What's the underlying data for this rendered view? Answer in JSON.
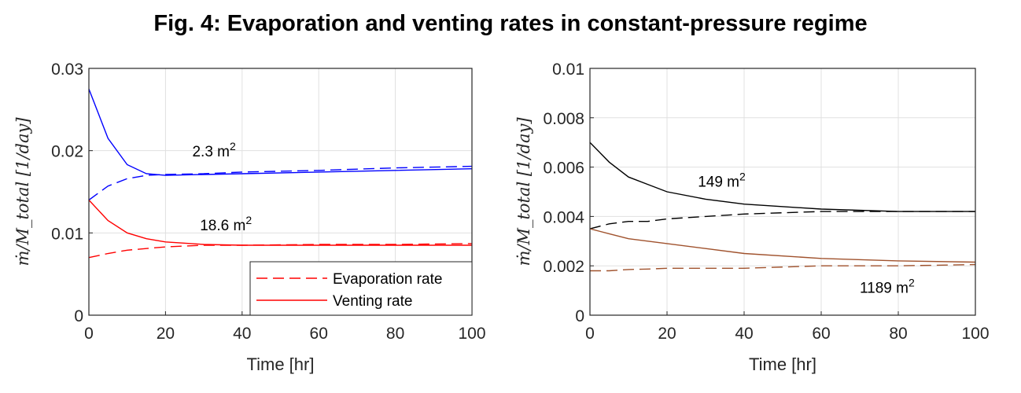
{
  "title": "Fig. 4: Evaporation and venting rates in constant-pressure regime",
  "chart_data": [
    {
      "type": "line",
      "xlabel": "Time [hr]",
      "ylabel": "ṁ/M_total  [1/day]",
      "xlim": [
        0,
        100
      ],
      "ylim": [
        0,
        0.03
      ],
      "xticks": [
        "0",
        "20",
        "40",
        "60",
        "80",
        "100"
      ],
      "yticks": [
        "0",
        "0.01",
        "0.02",
        "0.03"
      ],
      "grid": true,
      "legend": {
        "placement": "bottom-right",
        "entries": [
          "Evaporation rate",
          "Venting rate"
        ]
      },
      "annotations": [
        {
          "text": "2.3 m",
          "sup": "2",
          "x": 27,
          "y": 0.0193
        },
        {
          "text": "18.6 m",
          "sup": "2",
          "x": 29,
          "y": 0.0103
        }
      ],
      "x": [
        0,
        5,
        10,
        15,
        20,
        30,
        40,
        60,
        80,
        100
      ],
      "series": [
        {
          "name": "Venting rate 2.3 m2",
          "color": "#0000ff",
          "dash": false,
          "values": [
            0.0275,
            0.0215,
            0.0183,
            0.0172,
            0.017,
            0.0171,
            0.0172,
            0.0174,
            0.0176,
            0.0178
          ]
        },
        {
          "name": "Evaporation rate 2.3 m2",
          "color": "#0000ff",
          "dash": true,
          "values": [
            0.014,
            0.0157,
            0.0166,
            0.017,
            0.0171,
            0.0172,
            0.0174,
            0.0176,
            0.0179,
            0.0181
          ]
        },
        {
          "name": "Venting rate 18.6 m2",
          "color": "#ff0000",
          "dash": false,
          "values": [
            0.014,
            0.0115,
            0.01,
            0.0093,
            0.0089,
            0.0086,
            0.0085,
            0.0085,
            0.0085,
            0.0085
          ]
        },
        {
          "name": "Evaporation rate 18.6 m2",
          "color": "#ff0000",
          "dash": true,
          "values": [
            0.007,
            0.0075,
            0.0079,
            0.0081,
            0.0083,
            0.0085,
            0.0085,
            0.0086,
            0.0086,
            0.0087
          ]
        }
      ]
    },
    {
      "type": "line",
      "xlabel": "Time [hr]",
      "ylabel": "ṁ/M_total  [1/day]",
      "xlim": [
        0,
        100
      ],
      "ylim": [
        0,
        0.01
      ],
      "xticks": [
        "0",
        "20",
        "40",
        "60",
        "80",
        "100"
      ],
      "yticks": [
        "0",
        "0.002",
        "0.004",
        "0.006",
        "0.008",
        "0.01"
      ],
      "grid": true,
      "annotations": [
        {
          "text": "149 m",
          "sup": "2",
          "x": 28,
          "y": 0.0052
        },
        {
          "text": "1189 m",
          "sup": "2",
          "x": 70,
          "y": 0.0009
        }
      ],
      "x": [
        0,
        5,
        10,
        15,
        20,
        30,
        40,
        60,
        80,
        100
      ],
      "series": [
        {
          "name": "Venting rate 149 m2",
          "color": "#000000",
          "dash": false,
          "values": [
            0.007,
            0.0062,
            0.0056,
            0.0053,
            0.005,
            0.0047,
            0.0045,
            0.0043,
            0.0042,
            0.0042
          ]
        },
        {
          "name": "Evaporation rate 149 m2",
          "color": "#000000",
          "dash": true,
          "values": [
            0.0035,
            0.0037,
            0.0038,
            0.0038,
            0.0039,
            0.004,
            0.0041,
            0.0042,
            0.0042,
            0.0042
          ]
        },
        {
          "name": "Venting rate 1189 m2",
          "color": "#a0522d",
          "dash": false,
          "values": [
            0.0035,
            0.0033,
            0.0031,
            0.003,
            0.0029,
            0.0027,
            0.0025,
            0.0023,
            0.0022,
            0.00215
          ]
        },
        {
          "name": "Evaporation rate 1189 m2",
          "color": "#a0522d",
          "dash": true,
          "values": [
            0.0018,
            0.0018,
            0.00185,
            0.00187,
            0.0019,
            0.0019,
            0.0019,
            0.002,
            0.002,
            0.00205
          ]
        }
      ]
    }
  ]
}
